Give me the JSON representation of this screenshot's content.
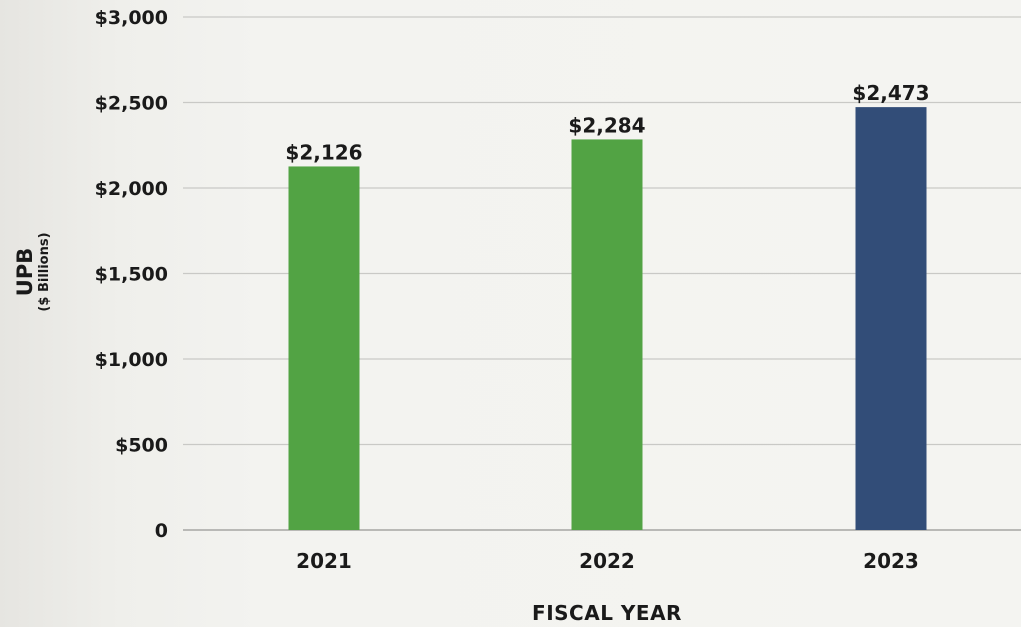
{
  "chart_data": {
    "type": "bar",
    "title": "",
    "xlabel": "FISCAL YEAR",
    "ylabel": "UPB",
    "ylabel_sub": "($ Billions)",
    "categories": [
      "2021",
      "2022",
      "2023"
    ],
    "values": [
      2126,
      2284,
      2473
    ],
    "value_labels": [
      "$2,126",
      "$2,284",
      "$2,473"
    ],
    "bar_colors": [
      "#52a344",
      "#52a344",
      "#324d78"
    ],
    "ylim": [
      0,
      3000
    ],
    "y_ticks": [
      0,
      500,
      1000,
      1500,
      2000,
      2500,
      3000
    ],
    "y_tick_labels": [
      "0",
      "$500",
      "$1,000",
      "$1,500",
      "$2,000",
      "$2,500",
      "$3,000"
    ],
    "grid": true,
    "legend": "none"
  }
}
